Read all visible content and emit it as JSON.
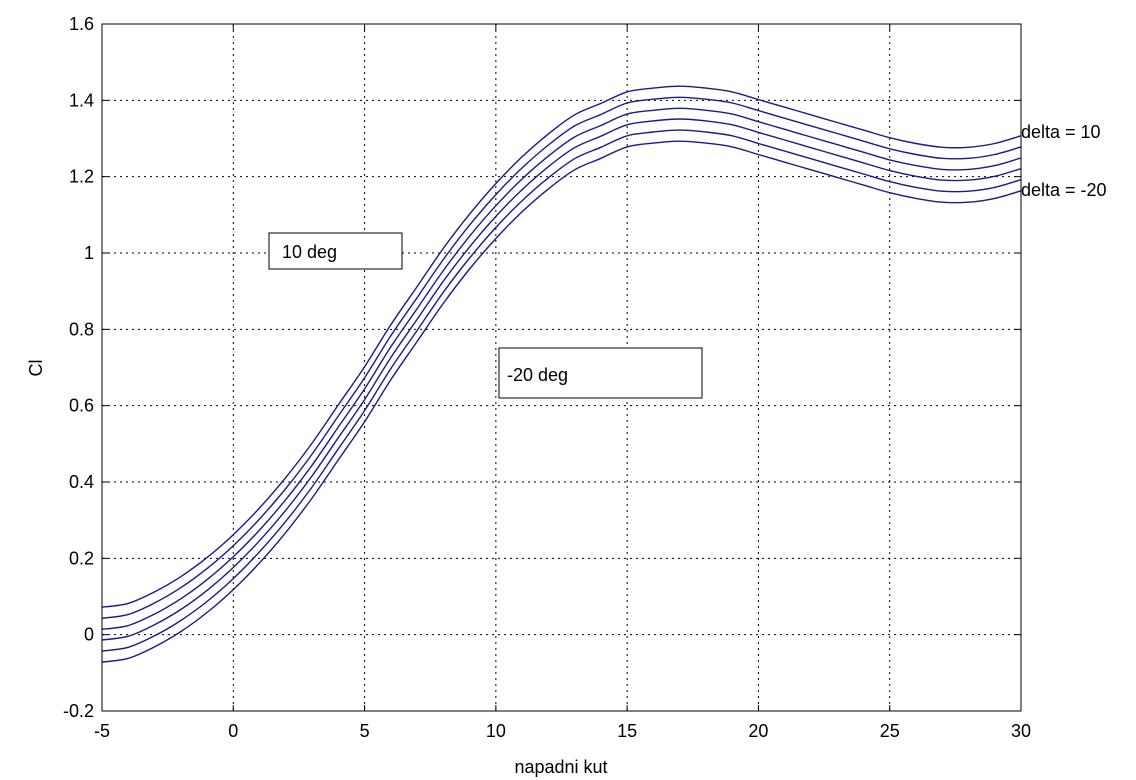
{
  "chart_data": {
    "type": "line",
    "title": "",
    "xlabel": "napadni kut",
    "ylabel": "Cl",
    "xlim": [
      -5,
      30
    ],
    "ylim": [
      -0.2,
      1.6
    ],
    "grid": true,
    "xticks": [
      "-5",
      "0",
      "5",
      "10",
      "15",
      "20",
      "25",
      "30"
    ],
    "yticks": [
      "-0.2",
      "0",
      "0.2",
      "0.4",
      "0.6",
      "0.8",
      "1",
      "1.2",
      "1.4",
      "1.6"
    ],
    "x": [
      -5,
      -4,
      -3,
      -2,
      -1,
      0,
      1,
      2,
      3,
      4,
      5,
      6,
      7,
      8,
      9,
      10,
      11,
      12,
      13,
      14,
      15,
      16,
      17,
      18,
      19,
      20,
      21,
      22,
      23,
      24,
      25,
      26,
      27,
      28,
      29,
      30
    ],
    "base_curve": [
      0.0,
      0.01,
      0.04,
      0.08,
      0.13,
      0.19,
      0.26,
      0.34,
      0.43,
      0.53,
      0.63,
      0.74,
      0.84,
      0.94,
      1.03,
      1.11,
      1.18,
      1.24,
      1.29,
      1.32,
      1.35,
      1.36,
      1.365,
      1.36,
      1.35,
      1.33,
      1.31,
      1.29,
      1.27,
      1.25,
      1.23,
      1.215,
      1.205,
      1.205,
      1.215,
      1.235
    ],
    "series": [
      {
        "offset": 0.072
      },
      {
        "offset": 0.043
      },
      {
        "offset": 0.014
      },
      {
        "offset": -0.014
      },
      {
        "offset": -0.043
      },
      {
        "offset": -0.072
      }
    ],
    "color": "#1a1a8c",
    "annotations": [
      {
        "text": "10 deg",
        "boxed": true
      },
      {
        "text": "-20 deg",
        "boxed": true
      },
      {
        "text": "delta = 10",
        "boxed": false
      },
      {
        "text": "delta = -20",
        "boxed": false
      }
    ]
  }
}
